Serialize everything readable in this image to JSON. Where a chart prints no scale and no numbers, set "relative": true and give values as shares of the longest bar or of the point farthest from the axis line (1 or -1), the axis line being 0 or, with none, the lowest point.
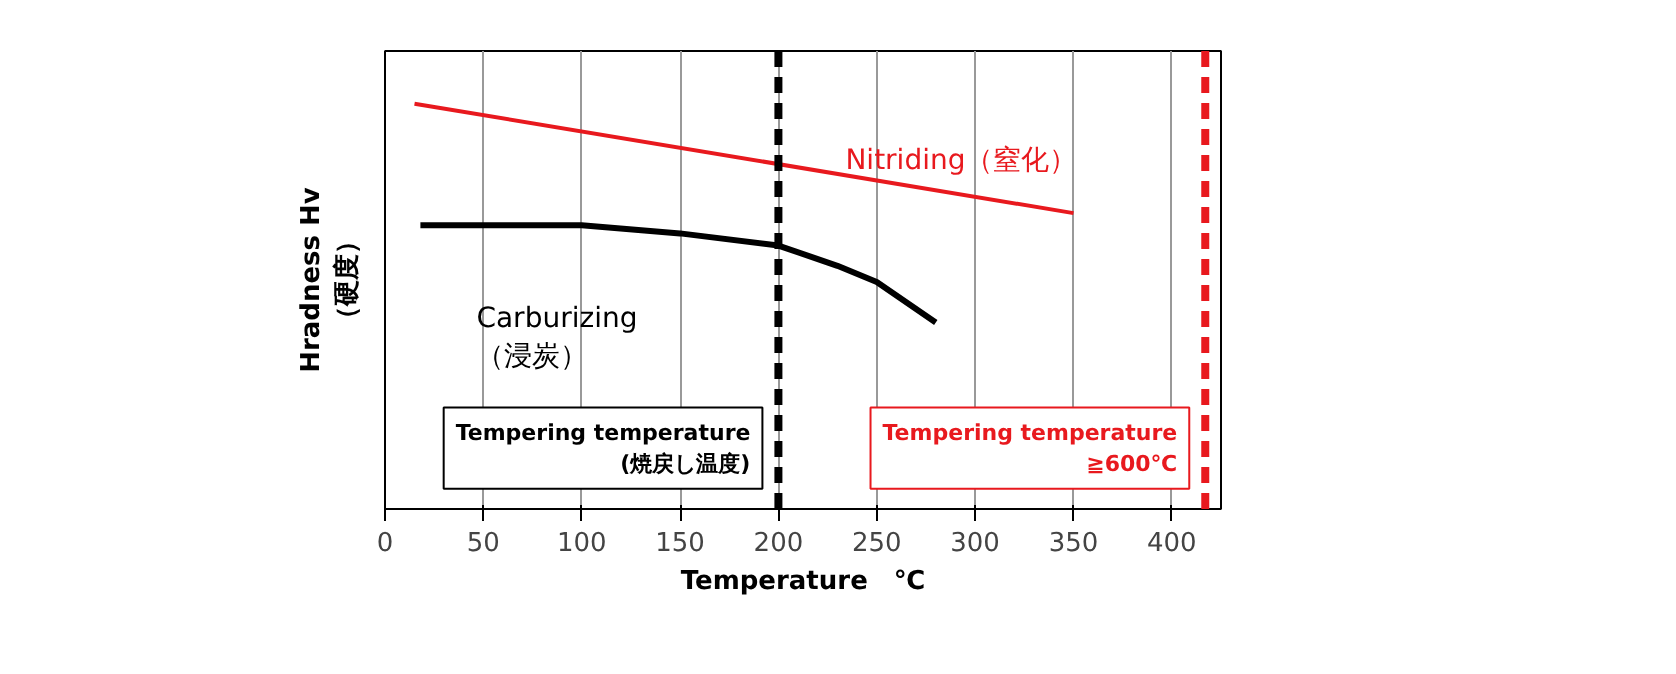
{
  "chart_data": {
    "type": "line",
    "relative": true,
    "xlabel": "Temperature　℃",
    "ylabel": "Hradness Hv\n（硬度）",
    "xlim": [
      0,
      425
    ],
    "xticks": [
      0,
      50,
      100,
      150,
      200,
      250,
      300,
      350,
      400
    ],
    "grid": "x",
    "marker": "none",
    "line_style": "solid",
    "series": [
      {
        "name": "Nitriding（窒化）",
        "color": "#e8191e",
        "x": [
          15,
          350
        ],
        "values": [
          1,
          0.73
        ]
      },
      {
        "name": "Carburizing\n（浸炭）",
        "color": "#000000",
        "x": [
          18,
          100,
          150,
          200,
          230,
          250,
          280
        ],
        "values": [
          0.7,
          0.7,
          0.68,
          0.65,
          0.6,
          0.56,
          0.46
        ]
      }
    ],
    "ref_lines": [
      {
        "axis": "x",
        "value": 200,
        "label": "Tempering temperature\n(焼戻し温度)",
        "color": "#000000",
        "line_style": "dashed"
      },
      {
        "axis": "x",
        "value": 417,
        "label": "Tempering temperature\n≧600℃",
        "color": "#e8191e",
        "line_style": "dashed"
      }
    ]
  }
}
